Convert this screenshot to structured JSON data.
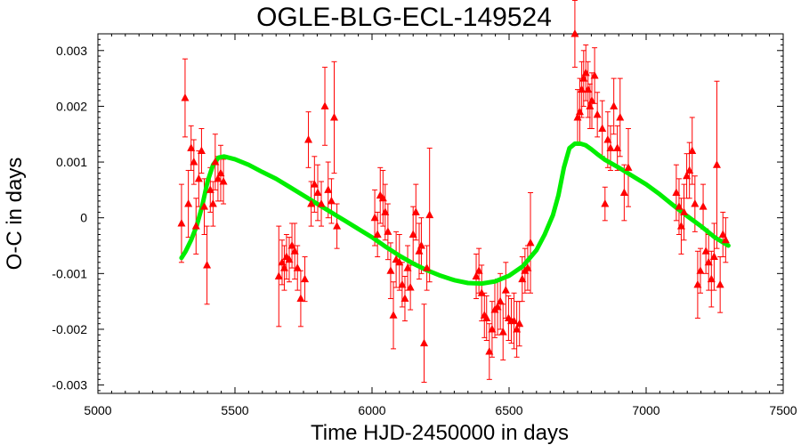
{
  "chart_data": {
    "type": "scatter",
    "title": "OGLE-BLG-ECL-149524",
    "xlabel": "Time HJD-2450000 in days",
    "ylabel": "O-C in days",
    "xlim": [
      5000,
      7500
    ],
    "ylim": [
      -0.00315,
      0.0033
    ],
    "x_ticks": [
      5000,
      5500,
      6000,
      6500,
      7000,
      7500
    ],
    "x_tick_labels": [
      "5000",
      "5500",
      "6000",
      "6500",
      "7000",
      "7500"
    ],
    "y_ticks": [
      -0.003,
      -0.002,
      -0.001,
      0,
      0.001,
      0.002,
      0.003
    ],
    "y_tick_labels": [
      "-0.003",
      "-0.002",
      "-0.001",
      "0",
      "0.001",
      "0.002",
      "0.003"
    ],
    "grid": false,
    "colors": {
      "points": "#ff0000",
      "fit": "#00ee00",
      "axis": "#000000"
    },
    "series": [
      {
        "kind": "points-with-error-bars",
        "marker": "triangle",
        "x": [
          5305,
          5318,
          5330,
          5340,
          5350,
          5358,
          5368,
          5378,
          5388,
          5398,
          5410,
          5420,
          5428,
          5438,
          5448,
          5458,
          5660,
          5672,
          5680,
          5688,
          5698,
          5708,
          5718,
          5728,
          5740,
          5755,
          5768,
          5778,
          5790,
          5802,
          5815,
          5828,
          5840,
          5852,
          5862,
          5872,
          6010,
          6020,
          6030,
          6040,
          6048,
          6058,
          6068,
          6078,
          6088,
          6100,
          6110,
          6120,
          6130,
          6140,
          6150,
          6160,
          6172,
          6180,
          6190,
          6200,
          6210,
          6380,
          6390,
          6400,
          6410,
          6418,
          6428,
          6438,
          6448,
          6458,
          6468,
          6478,
          6488,
          6498,
          6508,
          6518,
          6528,
          6538,
          6548,
          6558,
          6568,
          6578,
          6740,
          6750,
          6758,
          6765,
          6772,
          6780,
          6788,
          6795,
          6802,
          6812,
          6822,
          6840,
          6850,
          6860,
          6870,
          6882,
          6895,
          6905,
          6920,
          6935,
          7110,
          7120,
          7128,
          7138,
          7148,
          7158,
          7168,
          7178,
          7188,
          7198,
          7208,
          7218,
          7228,
          7238,
          7248,
          7258,
          7270,
          7280,
          7290
        ],
        "y": [
          -0.0001,
          0.00215,
          0.00025,
          0.00125,
          0.001,
          -0.00015,
          0.0007,
          0.0012,
          0.0002,
          -0.00085,
          0.0005,
          0.00025,
          0.001,
          0.0007,
          0.0008,
          0.00065,
          -0.00105,
          -0.0008,
          -0.0009,
          -0.0007,
          -0.00075,
          -0.0005,
          -0.0006,
          -0.0009,
          -0.00145,
          -0.0011,
          0.0014,
          0.00025,
          0.0006,
          0.00045,
          0.00025,
          0.002,
          0.0005,
          0.0003,
          0.0018,
          -0.00015,
          0,
          -0.0003,
          0.0004,
          0.00035,
          0.0001,
          -0.00025,
          -0.00095,
          -0.00175,
          -0.00075,
          -0.0008,
          -0.0012,
          -0.00145,
          -0.0009,
          -0.00125,
          -0.0003,
          0.0001,
          -0.0006,
          -0.0005,
          -0.00225,
          -0.0009,
          5e-05,
          -0.00105,
          -0.00095,
          -0.00135,
          -0.00175,
          -0.0018,
          -0.0024,
          -0.002,
          -0.00165,
          -0.0016,
          -0.0015,
          -0.00205,
          -0.0013,
          -0.0018,
          -0.00185,
          -0.00185,
          -0.002,
          -0.0019,
          -0.0011,
          -0.00095,
          -0.0009,
          -0.00045,
          0.0033,
          0.0018,
          0.0019,
          0.0023,
          0.0025,
          0.0026,
          0.0023,
          0.002,
          0.0021,
          0.00255,
          0.00185,
          0.0016,
          0.00025,
          0.0014,
          0.00125,
          0.002,
          0.00125,
          0.0018,
          0.00045,
          0.0009,
          0.00045,
          0.0002,
          -0.00015,
          0.0001,
          0.00075,
          0.00085,
          0.0012,
          0.00025,
          -0.0012,
          -0.00095,
          0.0002,
          -0.0006,
          -0.0008,
          -0.0011,
          -0.0007,
          0.00095,
          -0.0012,
          -0.0003,
          -0.0004
        ],
        "yerr": [
          0.0007,
          0.0007,
          0.0006,
          0.0004,
          0.0004,
          0.0005,
          0.0005,
          0.0004,
          0.0005,
          0.0007,
          0.0004,
          0.0004,
          0.0005,
          0.0004,
          0.0005,
          0.0004,
          0.0009,
          0.0004,
          0.0004,
          0.0004,
          0.0004,
          0.0004,
          0.0005,
          0.0004,
          0.0005,
          0.0004,
          0.0005,
          0.0004,
          0.0005,
          0.0005,
          0.0004,
          0.0007,
          0.0005,
          0.0004,
          0.001,
          0.0004,
          0.0005,
          0.0004,
          0.0005,
          0.0005,
          0.0005,
          0.0005,
          0.0005,
          0.0006,
          0.0005,
          0.0005,
          0.0004,
          0.0004,
          0.0004,
          0.0004,
          0.0005,
          0.0005,
          0.0005,
          0.0005,
          0.0007,
          0.0004,
          0.0012,
          0.0004,
          0.0004,
          0.0005,
          0.0004,
          0.0004,
          0.0005,
          0.0005,
          0.0005,
          0.0005,
          0.0005,
          0.0005,
          0.0005,
          0.0004,
          0.0004,
          0.0005,
          0.0005,
          0.0004,
          0.0004,
          0.0004,
          0.0004,
          0.0009,
          0.0006,
          0.0005,
          0.0006,
          0.0005,
          0.0005,
          0.0005,
          0.0005,
          0.0004,
          0.0005,
          0.0005,
          0.0004,
          0.0005,
          0.0003,
          0.0005,
          0.0004,
          0.0005,
          0.0004,
          0.0007,
          0.0005,
          0.0007,
          0.0005,
          0.0005,
          0.0005,
          0.0005,
          0.0004,
          0.0005,
          0.0006,
          0.0005,
          0.0006,
          0.0004,
          0.0004,
          0.0004,
          0.0005,
          0.0005,
          0.0006,
          0.0015,
          0.0005,
          0.0004,
          0.0004
        ]
      },
      {
        "kind": "model-curve",
        "x": [
          5305,
          5320,
          5340,
          5360,
          5380,
          5400,
          5420,
          5440,
          5460,
          5500,
          5550,
          5600,
          5650,
          5700,
          5750,
          5800,
          5850,
          5900,
          5950,
          6000,
          6050,
          6100,
          6150,
          6200,
          6250,
          6300,
          6350,
          6400,
          6450,
          6500,
          6550,
          6600,
          6630,
          6660,
          6680,
          6700,
          6720,
          6740,
          6760,
          6780,
          6800,
          6820,
          6850,
          6900,
          6950,
          7000,
          7050,
          7100,
          7150,
          7200,
          7250,
          7300
        ],
        "y": [
          -0.00072,
          -0.0006,
          -0.0004,
          -0.00015,
          0.0002,
          0.00065,
          0.00095,
          0.00108,
          0.0011,
          0.00105,
          0.00095,
          0.00082,
          0.0007,
          0.00055,
          0.0004,
          0.00025,
          0.0001,
          -5e-05,
          -0.0002,
          -0.00035,
          -0.00052,
          -0.00068,
          -0.00082,
          -0.00094,
          -0.00104,
          -0.00112,
          -0.00117,
          -0.00118,
          -0.00114,
          -0.00104,
          -0.00087,
          -0.00058,
          -0.0003,
          5e-05,
          0.0004,
          0.0009,
          0.00125,
          0.00133,
          0.00133,
          0.0013,
          0.00123,
          0.00115,
          0.00104,
          0.0009,
          0.00075,
          0.0006,
          0.00042,
          0.00022,
          3e-05,
          -0.00015,
          -0.00035,
          -0.0005
        ]
      }
    ]
  }
}
